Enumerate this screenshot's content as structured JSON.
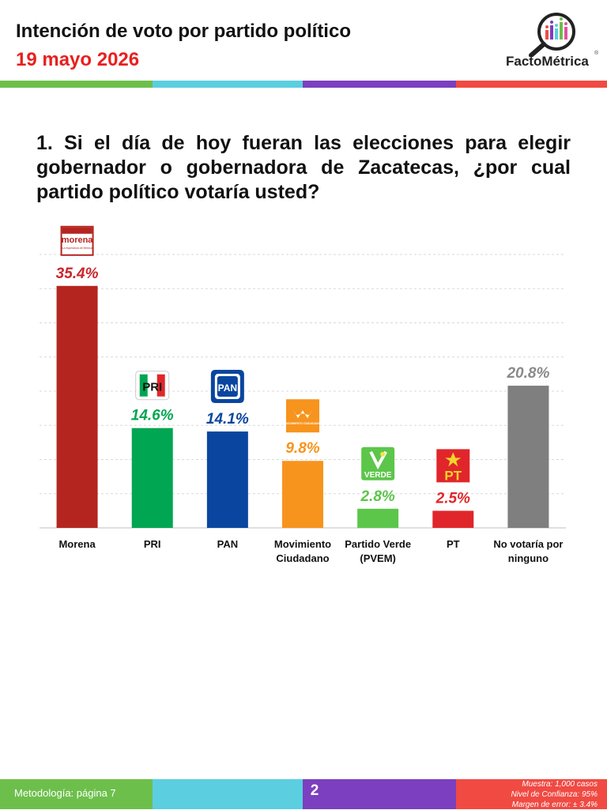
{
  "header": {
    "title": "Intención de voto por partido político",
    "date": "19 mayo 2026"
  },
  "brand": {
    "name": "FactoMétrica",
    "reg": "®"
  },
  "colors": {
    "stripe": [
      "#6dbf4b",
      "#5bcfe0",
      "#7b3fbf",
      "#f04a43"
    ],
    "accent_red": "#e8201e"
  },
  "question": "1. Si el día de hoy fueran las elecciones para elegir gobernador o gobernadora de Zacatecas, ¿por cual partido político votaría usted?",
  "chart_data": {
    "type": "bar",
    "categories": [
      "Morena",
      "PRI",
      "PAN",
      "Movimiento Ciudadano",
      "Partido Verde (PVEM)",
      "PT",
      "No votaría por ninguno"
    ],
    "values": [
      35.4,
      14.6,
      14.1,
      9.8,
      2.8,
      2.5,
      20.8
    ],
    "value_labels": [
      "35.4%",
      "14.6%",
      "14.1%",
      "9.8%",
      "2.8%",
      "2.5%",
      "20.8%"
    ],
    "category_lines": [
      [
        "Morena"
      ],
      [
        "PRI"
      ],
      [
        "PAN"
      ],
      [
        "Movimiento",
        "Ciudadano"
      ],
      [
        "Partido Verde",
        "(PVEM)"
      ],
      [
        "PT"
      ],
      [
        "No votaría por",
        "ninguno"
      ]
    ],
    "bar_colors": [
      "#b52520",
      "#00a651",
      "#0a46a0",
      "#f7941d",
      "#5cc64a",
      "#e0262b",
      "#7f7f7f"
    ],
    "label_colors": [
      "#c8262b",
      "#00a651",
      "#0a46a0",
      "#f7941d",
      "#5cc64a",
      "#e0262b",
      "#8a8a8a"
    ],
    "logos": [
      {
        "name": "morena",
        "text": "morena",
        "sub": "La esperanza de México"
      },
      {
        "name": "pri",
        "text": "PRI"
      },
      {
        "name": "pan",
        "text": "PAN"
      },
      {
        "name": "mc",
        "text": "MOVIMIENTO CIUDADANO"
      },
      {
        "name": "verde",
        "text": "VERDE"
      },
      {
        "name": "pt",
        "text": "PT"
      },
      null
    ],
    "ylim": [
      0,
      40
    ],
    "grid": true,
    "legend": "none"
  },
  "footer": {
    "methodology": "Metodología: página 7",
    "page": "2",
    "stats": [
      "Muestra:  1,000 casos",
      "Nivel de Confianza: 95%",
      "Margen de error: ± 3.4%"
    ]
  }
}
